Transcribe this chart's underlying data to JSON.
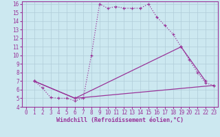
{
  "xlabel": "Windchill (Refroidissement éolien,°C)",
  "bg_color": "#cce8f0",
  "line_color": "#993399",
  "xlim": [
    -0.5,
    23.5
  ],
  "ylim": [
    4,
    16.3
  ],
  "yticks": [
    4,
    5,
    6,
    7,
    8,
    9,
    10,
    11,
    12,
    13,
    14,
    15,
    16
  ],
  "xticks": [
    0,
    1,
    2,
    3,
    4,
    5,
    6,
    7,
    8,
    9,
    10,
    11,
    12,
    13,
    14,
    15,
    16,
    17,
    18,
    19,
    20,
    21,
    22,
    23
  ],
  "line1_x": [
    1,
    2,
    3,
    4,
    5,
    6,
    7,
    8,
    9,
    10,
    11,
    12,
    13,
    14,
    15,
    16,
    17,
    18,
    19,
    20,
    21,
    22,
    23
  ],
  "line1_y": [
    7.0,
    6.2,
    5.1,
    5.0,
    5.0,
    4.7,
    5.0,
    10.0,
    16.0,
    15.5,
    15.7,
    15.5,
    15.5,
    15.5,
    16.0,
    14.5,
    13.5,
    12.5,
    11.0,
    9.5,
    8.0,
    6.8,
    6.5
  ],
  "line2_x": [
    1,
    6,
    19,
    22
  ],
  "line2_y": [
    7.0,
    5.0,
    11.0,
    7.0
  ],
  "line3_x": [
    1,
    6,
    23
  ],
  "line3_y": [
    7.0,
    5.0,
    6.5
  ],
  "grid_color": "#b0ccd8",
  "tick_fontsize": 5.5,
  "xlabel_fontsize": 6.0,
  "lw_main": 0.9,
  "lw_lines": 0.9
}
